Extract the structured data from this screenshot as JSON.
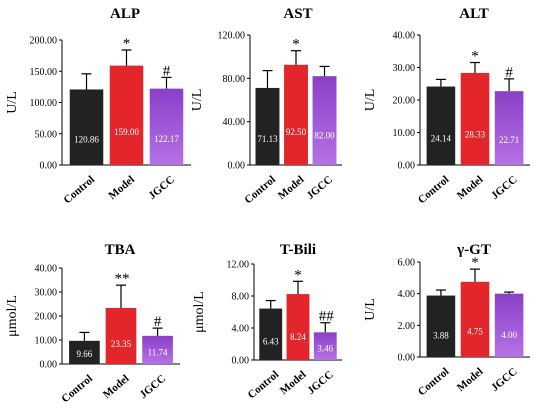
{
  "chart_data": [
    {
      "type": "bar",
      "title": "ALP",
      "ylabel": "U/L",
      "categories": [
        "Control",
        "Model",
        "JGCC"
      ],
      "values": [
        120.86,
        159.0,
        122.17
      ],
      "value_labels": [
        "120.86",
        "159.00",
        "122.17"
      ],
      "errors": [
        25,
        25,
        18
      ],
      "significance": [
        "",
        "*",
        "#"
      ],
      "ylim": [
        0,
        200
      ],
      "yticks": [
        "0.00",
        "50.00",
        "100.00",
        "150.00",
        "200.00"
      ]
    },
    {
      "type": "bar",
      "title": "AST",
      "ylabel": "U/L",
      "categories": [
        "Control",
        "Model",
        "JGCC"
      ],
      "values": [
        71.13,
        92.5,
        82.0
      ],
      "value_labels": [
        "71.13",
        "92.50",
        "82.00"
      ],
      "errors": [
        16,
        13,
        9
      ],
      "significance": [
        "",
        "*",
        ""
      ],
      "ylim": [
        0,
        120
      ],
      "yticks": [
        "0.00",
        "40.00",
        "80.00",
        "120.00"
      ]
    },
    {
      "type": "bar",
      "title": "ALT",
      "ylabel": "U/L",
      "categories": [
        "Control",
        "Model",
        "JGCC"
      ],
      "values": [
        24.14,
        28.33,
        22.71
      ],
      "value_labels": [
        "24.14",
        "28.33",
        "22.71"
      ],
      "errors": [
        2.2,
        3.2,
        3.8
      ],
      "significance": [
        "",
        "*",
        "#"
      ],
      "ylim": [
        0,
        40
      ],
      "yticks": [
        "0.00",
        "10.00",
        "20.00",
        "30.00",
        "40.00"
      ]
    },
    {
      "type": "bar",
      "title": "TBA",
      "ylabel": "μmol/L",
      "categories": [
        "Control",
        "Model",
        "JGCC"
      ],
      "values": [
        9.66,
        23.35,
        11.74
      ],
      "value_labels": [
        "9.66",
        "23.35",
        "11.74"
      ],
      "errors": [
        3.5,
        9.5,
        3.2
      ],
      "significance": [
        "",
        "**",
        "#"
      ],
      "ylim": [
        0,
        40
      ],
      "yticks": [
        "0.00",
        "10.00",
        "20.00",
        "30.00",
        "40.00"
      ]
    },
    {
      "type": "bar",
      "title": "T-Bili",
      "ylabel": "μmol/L",
      "categories": [
        "Control",
        "Model",
        "JGCC"
      ],
      "values": [
        6.43,
        8.24,
        3.46
      ],
      "value_labels": [
        "6.43",
        "8.24",
        "3.46"
      ],
      "errors": [
        1.0,
        1.6,
        1.2
      ],
      "significance": [
        "",
        "*",
        "##"
      ],
      "ylim": [
        0,
        12
      ],
      "yticks": [
        "0.00",
        "4.00",
        "8.00",
        "12.00"
      ]
    },
    {
      "type": "bar",
      "title": "γ-GT",
      "ylabel": "U/L",
      "categories": [
        "Control",
        "Model",
        "JGCC"
      ],
      "values": [
        3.88,
        4.75,
        4.0
      ],
      "value_labels": [
        "3.88",
        "4.75",
        "4.00"
      ],
      "errors": [
        0.35,
        0.8,
        0.1
      ],
      "significance": [
        "",
        "*",
        ""
      ],
      "ylim": [
        0,
        6
      ],
      "yticks": [
        "0.00",
        "2.00",
        "4.00",
        "6.00"
      ]
    }
  ],
  "colors": {
    "control": "#222222",
    "model": "#e3262b",
    "jgcc_top": "#8a3fc6",
    "jgcc_bottom": "#b572e6"
  }
}
